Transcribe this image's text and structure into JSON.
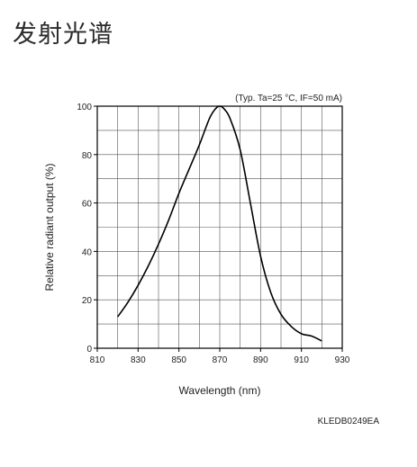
{
  "page": {
    "title": "发射光谱"
  },
  "chart_data": {
    "type": "line",
    "title": "",
    "condition": "(Typ. Ta=25 °C, IF=50 mA)",
    "xlabel": "Wavelength (nm)",
    "ylabel": "Relative radiant output (%)",
    "xlim": [
      810,
      930
    ],
    "ylim": [
      0,
      100
    ],
    "xticks": [
      810,
      830,
      850,
      870,
      890,
      910,
      930
    ],
    "yticks": [
      0,
      20,
      40,
      60,
      80,
      100
    ],
    "x_minor_grid": [
      820,
      840,
      860,
      880,
      900,
      920
    ],
    "y_minor_grid": [
      10,
      30,
      50,
      70,
      90
    ],
    "grid": true,
    "series": [
      {
        "name": "",
        "color": "#000000",
        "x": [
          820,
          825,
          830,
          835,
          840,
          845,
          850,
          855,
          860,
          865,
          868,
          870,
          872,
          875,
          880,
          885,
          890,
          895,
          900,
          905,
          910,
          915,
          920
        ],
        "y": [
          13,
          19,
          26,
          34,
          43,
          53,
          64,
          74,
          84,
          95,
          99,
          100,
          99,
          95,
          82,
          60,
          38,
          23,
          14,
          9,
          6,
          5,
          3
        ]
      }
    ],
    "code": "KLEDB0249EA"
  }
}
